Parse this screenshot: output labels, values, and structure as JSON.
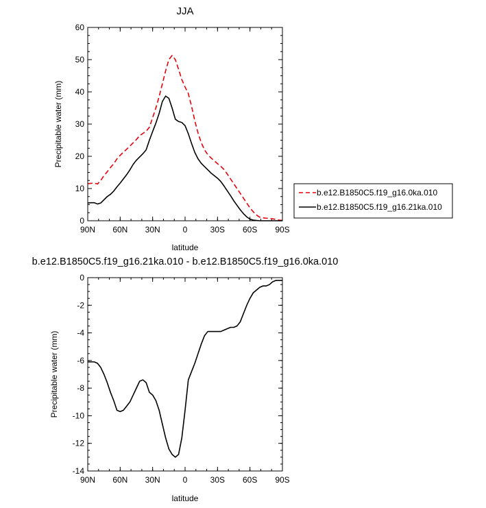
{
  "chart_data": [
    {
      "type": "line",
      "title": "JJA",
      "xlabel": "latitude",
      "ylabel": "Precipitable water (mm)",
      "xlim": [
        90,
        -90
      ],
      "ylim": [
        0,
        60
      ],
      "xticks": [
        90,
        60,
        30,
        0,
        -30,
        -60,
        -90
      ],
      "xtick_labels": [
        "90N",
        "60N",
        "30N",
        "0",
        "30S",
        "60S",
        "90S"
      ],
      "yticks": [
        0,
        10,
        20,
        30,
        40,
        50,
        60
      ],
      "ytick_labels": [
        "0",
        "10",
        "20",
        "30",
        "40",
        "50",
        "60"
      ],
      "legend_position": "right",
      "series": [
        {
          "name": "b.e12.B1850C5.f19_g16.0ka.010",
          "color": "#e8000b",
          "dash": "dashed",
          "x": [
            90,
            87,
            84,
            81,
            78,
            75,
            72,
            69,
            66,
            63,
            60,
            57,
            54,
            51,
            48,
            45,
            42,
            39,
            36,
            33,
            30,
            27,
            24,
            21,
            18,
            15,
            12,
            9,
            6,
            3,
            0,
            -3,
            -6,
            -9,
            -12,
            -15,
            -18,
            -21,
            -24,
            -27,
            -30,
            -33,
            -36,
            -39,
            -42,
            -45,
            -48,
            -51,
            -54,
            -57,
            -60,
            -63,
            -66,
            -69,
            -72,
            -75,
            -78,
            -81,
            -84,
            -87,
            -90
          ],
          "y": [
            11.5,
            11.6,
            11.7,
            11.4,
            12.5,
            14,
            15.2,
            16.5,
            17.7,
            19.2,
            20.3,
            21.3,
            22.2,
            23.2,
            24.2,
            25.2,
            26.4,
            27.1,
            27.8,
            29,
            32,
            35,
            38.5,
            42.5,
            46.5,
            50,
            51.3,
            50,
            47,
            43.8,
            41.5,
            39.5,
            35.5,
            31,
            27.2,
            24.2,
            22,
            20.5,
            19.5,
            18.6,
            17.7,
            16.9,
            15.9,
            14.5,
            13,
            11.5,
            10,
            8.5,
            7,
            5.5,
            4,
            2.8,
            1.8,
            1.1,
            0.9,
            0.8,
            0.7,
            0.6,
            0.4,
            0.2,
            0.1
          ]
        },
        {
          "name": "b.e12.B1850C5.f19_g16.21ka.010",
          "color": "#000000",
          "dash": "solid",
          "x": [
            90,
            87,
            84,
            81,
            78,
            75,
            72,
            69,
            66,
            63,
            60,
            57,
            54,
            51,
            48,
            45,
            42,
            39,
            36,
            33,
            30,
            27,
            24,
            21,
            18,
            15,
            12,
            9,
            6,
            3,
            0,
            -3,
            -6,
            -9,
            -12,
            -15,
            -18,
            -21,
            -24,
            -27,
            -30,
            -33,
            -36,
            -39,
            -42,
            -45,
            -48,
            -51,
            -54,
            -57,
            -60,
            -63,
            -66,
            -69,
            -72,
            -75,
            -78,
            -81,
            -84,
            -87,
            -90
          ],
          "y": [
            5.5,
            5.6,
            5.6,
            5.2,
            5.5,
            6.5,
            7.5,
            8.2,
            9.2,
            10.5,
            11.7,
            13,
            14.3,
            15.8,
            17.5,
            18.8,
            19.8,
            20.8,
            22,
            25,
            27.7,
            30.3,
            33.3,
            37,
            38.7,
            38,
            35,
            31.5,
            30.8,
            30.5,
            29.5,
            27,
            24,
            21.2,
            19.2,
            17.8,
            16.8,
            15.8,
            14.8,
            14,
            13.2,
            12.2,
            10.8,
            9.3,
            7.8,
            6.2,
            4.8,
            3.4,
            2.2,
            1.2,
            0.5,
            0.2,
            0.1,
            0,
            0,
            0,
            0,
            0,
            0,
            0,
            0
          ]
        }
      ]
    },
    {
      "type": "line",
      "title": "b.e12.B1850C5.f19_g16.21ka.010 - b.e12.B1850C5.f19_g16.0ka.010",
      "xlabel": "latitude",
      "ylabel": "Precipitable water (mm)",
      "xlim": [
        90,
        -90
      ],
      "ylim": [
        -14,
        0
      ],
      "xticks": [
        90,
        60,
        30,
        0,
        -30,
        -60,
        -90
      ],
      "xtick_labels": [
        "90N",
        "60N",
        "30N",
        "0",
        "30S",
        "60S",
        "90S"
      ],
      "yticks": [
        -14,
        -12,
        -10,
        -8,
        -6,
        -4,
        -2,
        0
      ],
      "ytick_labels": [
        "-14",
        "-12",
        "-10",
        "-8",
        "-6",
        "-4",
        "-2",
        "0"
      ],
      "series": [
        {
          "color": "#000000",
          "dash": "solid",
          "x": [
            90,
            87,
            84,
            81,
            78,
            75,
            72,
            69,
            66,
            63,
            60,
            57,
            54,
            51,
            48,
            45,
            42,
            39,
            36,
            33,
            30,
            27,
            24,
            21,
            18,
            15,
            12,
            9,
            6,
            3,
            0,
            -3,
            -6,
            -9,
            -12,
            -15,
            -18,
            -21,
            -24,
            -27,
            -30,
            -33,
            -36,
            -39,
            -42,
            -45,
            -48,
            -51,
            -54,
            -57,
            -60,
            -63,
            -66,
            -69,
            -72,
            -75,
            -78,
            -81,
            -84,
            -87,
            -90
          ],
          "y": [
            -6.1,
            -6.1,
            -6.1,
            -6.2,
            -6.5,
            -7,
            -7.6,
            -8.3,
            -8.9,
            -9.6,
            -9.7,
            -9.6,
            -9.3,
            -9,
            -8.5,
            -8,
            -7.5,
            -7.4,
            -7.6,
            -8.3,
            -8.5,
            -8.9,
            -9.6,
            -10.6,
            -11.6,
            -12.4,
            -12.8,
            -13,
            -12.8,
            -11.6,
            -9.6,
            -7.4,
            -6.8,
            -6.2,
            -5.5,
            -4.8,
            -4.2,
            -3.9,
            -3.9,
            -3.9,
            -3.9,
            -3.9,
            -3.8,
            -3.7,
            -3.6,
            -3.6,
            -3.5,
            -3.2,
            -2.6,
            -2,
            -1.5,
            -1.1,
            -0.9,
            -0.7,
            -0.6,
            -0.6,
            -0.5,
            -0.3,
            -0.2,
            -0.2,
            -0.2
          ]
        }
      ]
    }
  ]
}
